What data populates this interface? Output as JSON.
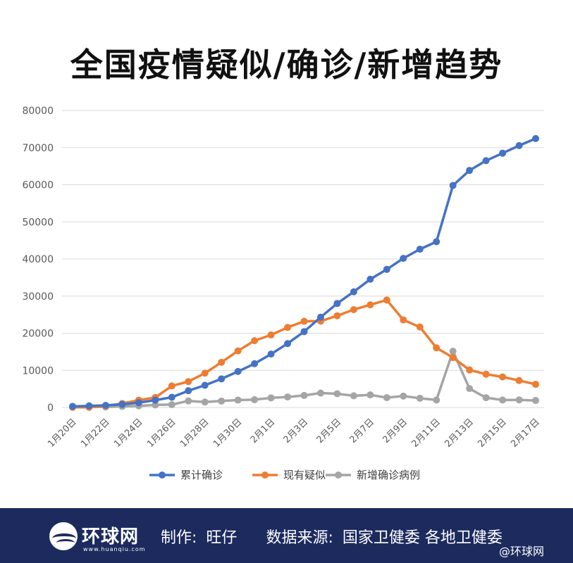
{
  "chart_data": {
    "type": "line",
    "title": "全国疫情疑似/确诊/新增趋势",
    "xlabel": "",
    "ylabel": "",
    "ylim": [
      0,
      80000
    ],
    "yticks": [
      0,
      10000,
      20000,
      30000,
      40000,
      50000,
      60000,
      70000,
      80000
    ],
    "grid": true,
    "legend_position": "bottom",
    "x": [
      "1月20日",
      "1月21日",
      "1月22日",
      "1月23日",
      "1月24日",
      "1月25日",
      "1月26日",
      "1月27日",
      "1月28日",
      "1月29日",
      "1月30日",
      "1月31日",
      "2月1日",
      "2月2日",
      "2月3日",
      "2月4日",
      "2月5日",
      "2月6日",
      "2月7日",
      "2月8日",
      "2月9日",
      "2月10日",
      "2月11日",
      "2月12日",
      "2月13日",
      "2月14日",
      "2月15日",
      "2月16日",
      "2月17日"
    ],
    "x_tick_labels": [
      "1月20日",
      "1月22日",
      "1月24日",
      "1月26日",
      "1月28日",
      "1月30日",
      "2月1日",
      "2月3日",
      "2月5日",
      "2月7日",
      "2月9日",
      "2月11日",
      "2月13日",
      "2月15日",
      "2月17日"
    ],
    "series": [
      {
        "name": "累计确诊",
        "color": "#4472c4",
        "values": [
          291,
          440,
          571,
          830,
          1287,
          1975,
          2744,
          4515,
          5974,
          7711,
          9692,
          11791,
          14380,
          17205,
          20438,
          24324,
          28018,
          31161,
          34546,
          37198,
          40171,
          42638,
          44653,
          59804,
          63851,
          66492,
          68500,
          70548,
          72436
        ]
      },
      {
        "name": "现有疑似",
        "color": "#ed7d31",
        "values": [
          54,
          37,
          393,
          1072,
          1965,
          2684,
          5794,
          6973,
          9239,
          12167,
          15238,
          17988,
          19544,
          21558,
          23214,
          23260,
          24702,
          26359,
          27657,
          28942,
          23589,
          21675,
          16067,
          13435,
          10109,
          8969,
          8228,
          7264,
          6242
        ]
      },
      {
        "name": "新增确诊病例",
        "color": "#a5a5a5",
        "values": [
          77,
          149,
          131,
          259,
          444,
          688,
          769,
          1771,
          1459,
          1737,
          1982,
          2102,
          2590,
          2829,
          3235,
          3887,
          3694,
          3143,
          3399,
          2656,
          3062,
          2478,
          2015,
          15152,
          5090,
          2641,
          2009,
          2048,
          1886
        ]
      }
    ]
  },
  "footer": {
    "logo_text": "环球网",
    "logo_url": "www.huanqiu.com",
    "producer_label": "制作:",
    "producer_name": "旺仔",
    "source_label": "数据来源:",
    "source_value": "国家卫健委 各地卫健委"
  },
  "watermark": "@环球网"
}
